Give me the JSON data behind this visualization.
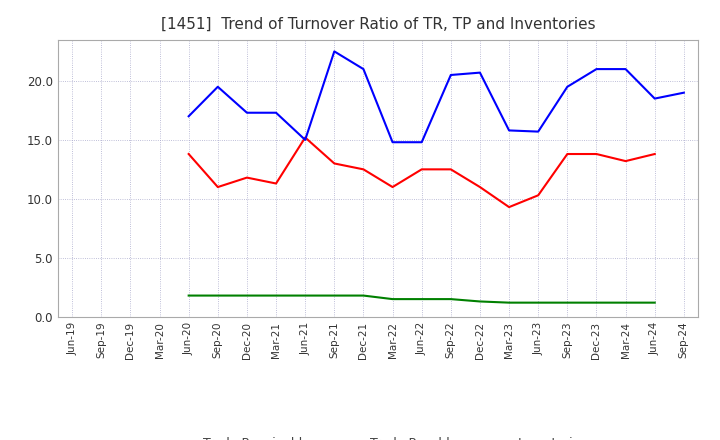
{
  "title": "[1451]  Trend of Turnover Ratio of TR, TP and Inventories",
  "x_labels": [
    "Jun-19",
    "Sep-19",
    "Dec-19",
    "Mar-20",
    "Jun-20",
    "Sep-20",
    "Dec-20",
    "Mar-21",
    "Jun-21",
    "Sep-21",
    "Dec-21",
    "Mar-22",
    "Jun-22",
    "Sep-22",
    "Dec-22",
    "Mar-23",
    "Jun-23",
    "Sep-23",
    "Dec-23",
    "Mar-24",
    "Jun-24",
    "Sep-24"
  ],
  "trade_receivables": [
    null,
    null,
    null,
    null,
    13.8,
    11.0,
    11.8,
    11.3,
    15.2,
    13.0,
    12.5,
    11.0,
    12.5,
    12.5,
    11.0,
    9.3,
    10.3,
    13.8,
    13.8,
    13.2,
    13.8,
    null
  ],
  "trade_payables": [
    null,
    null,
    null,
    null,
    17.0,
    19.5,
    17.3,
    17.3,
    15.0,
    22.5,
    21.0,
    14.8,
    14.8,
    20.5,
    20.7,
    15.8,
    15.7,
    19.5,
    21.0,
    21.0,
    18.5,
    19.0
  ],
  "inventories": [
    null,
    null,
    null,
    null,
    1.8,
    1.8,
    1.8,
    1.8,
    1.8,
    1.8,
    1.8,
    1.5,
    1.5,
    1.5,
    1.3,
    1.2,
    1.2,
    1.2,
    1.2,
    1.2,
    1.2,
    null
  ],
  "tr_color": "#ff0000",
  "tp_color": "#0000ff",
  "inv_color": "#008000",
  "ylim": [
    0.0,
    23.5
  ],
  "yticks": [
    0.0,
    5.0,
    10.0,
    15.0,
    20.0
  ],
  "background_color": "#ffffff",
  "title_fontsize": 11,
  "grid_color": "#aaaacc",
  "grid_linestyle": "dotted"
}
